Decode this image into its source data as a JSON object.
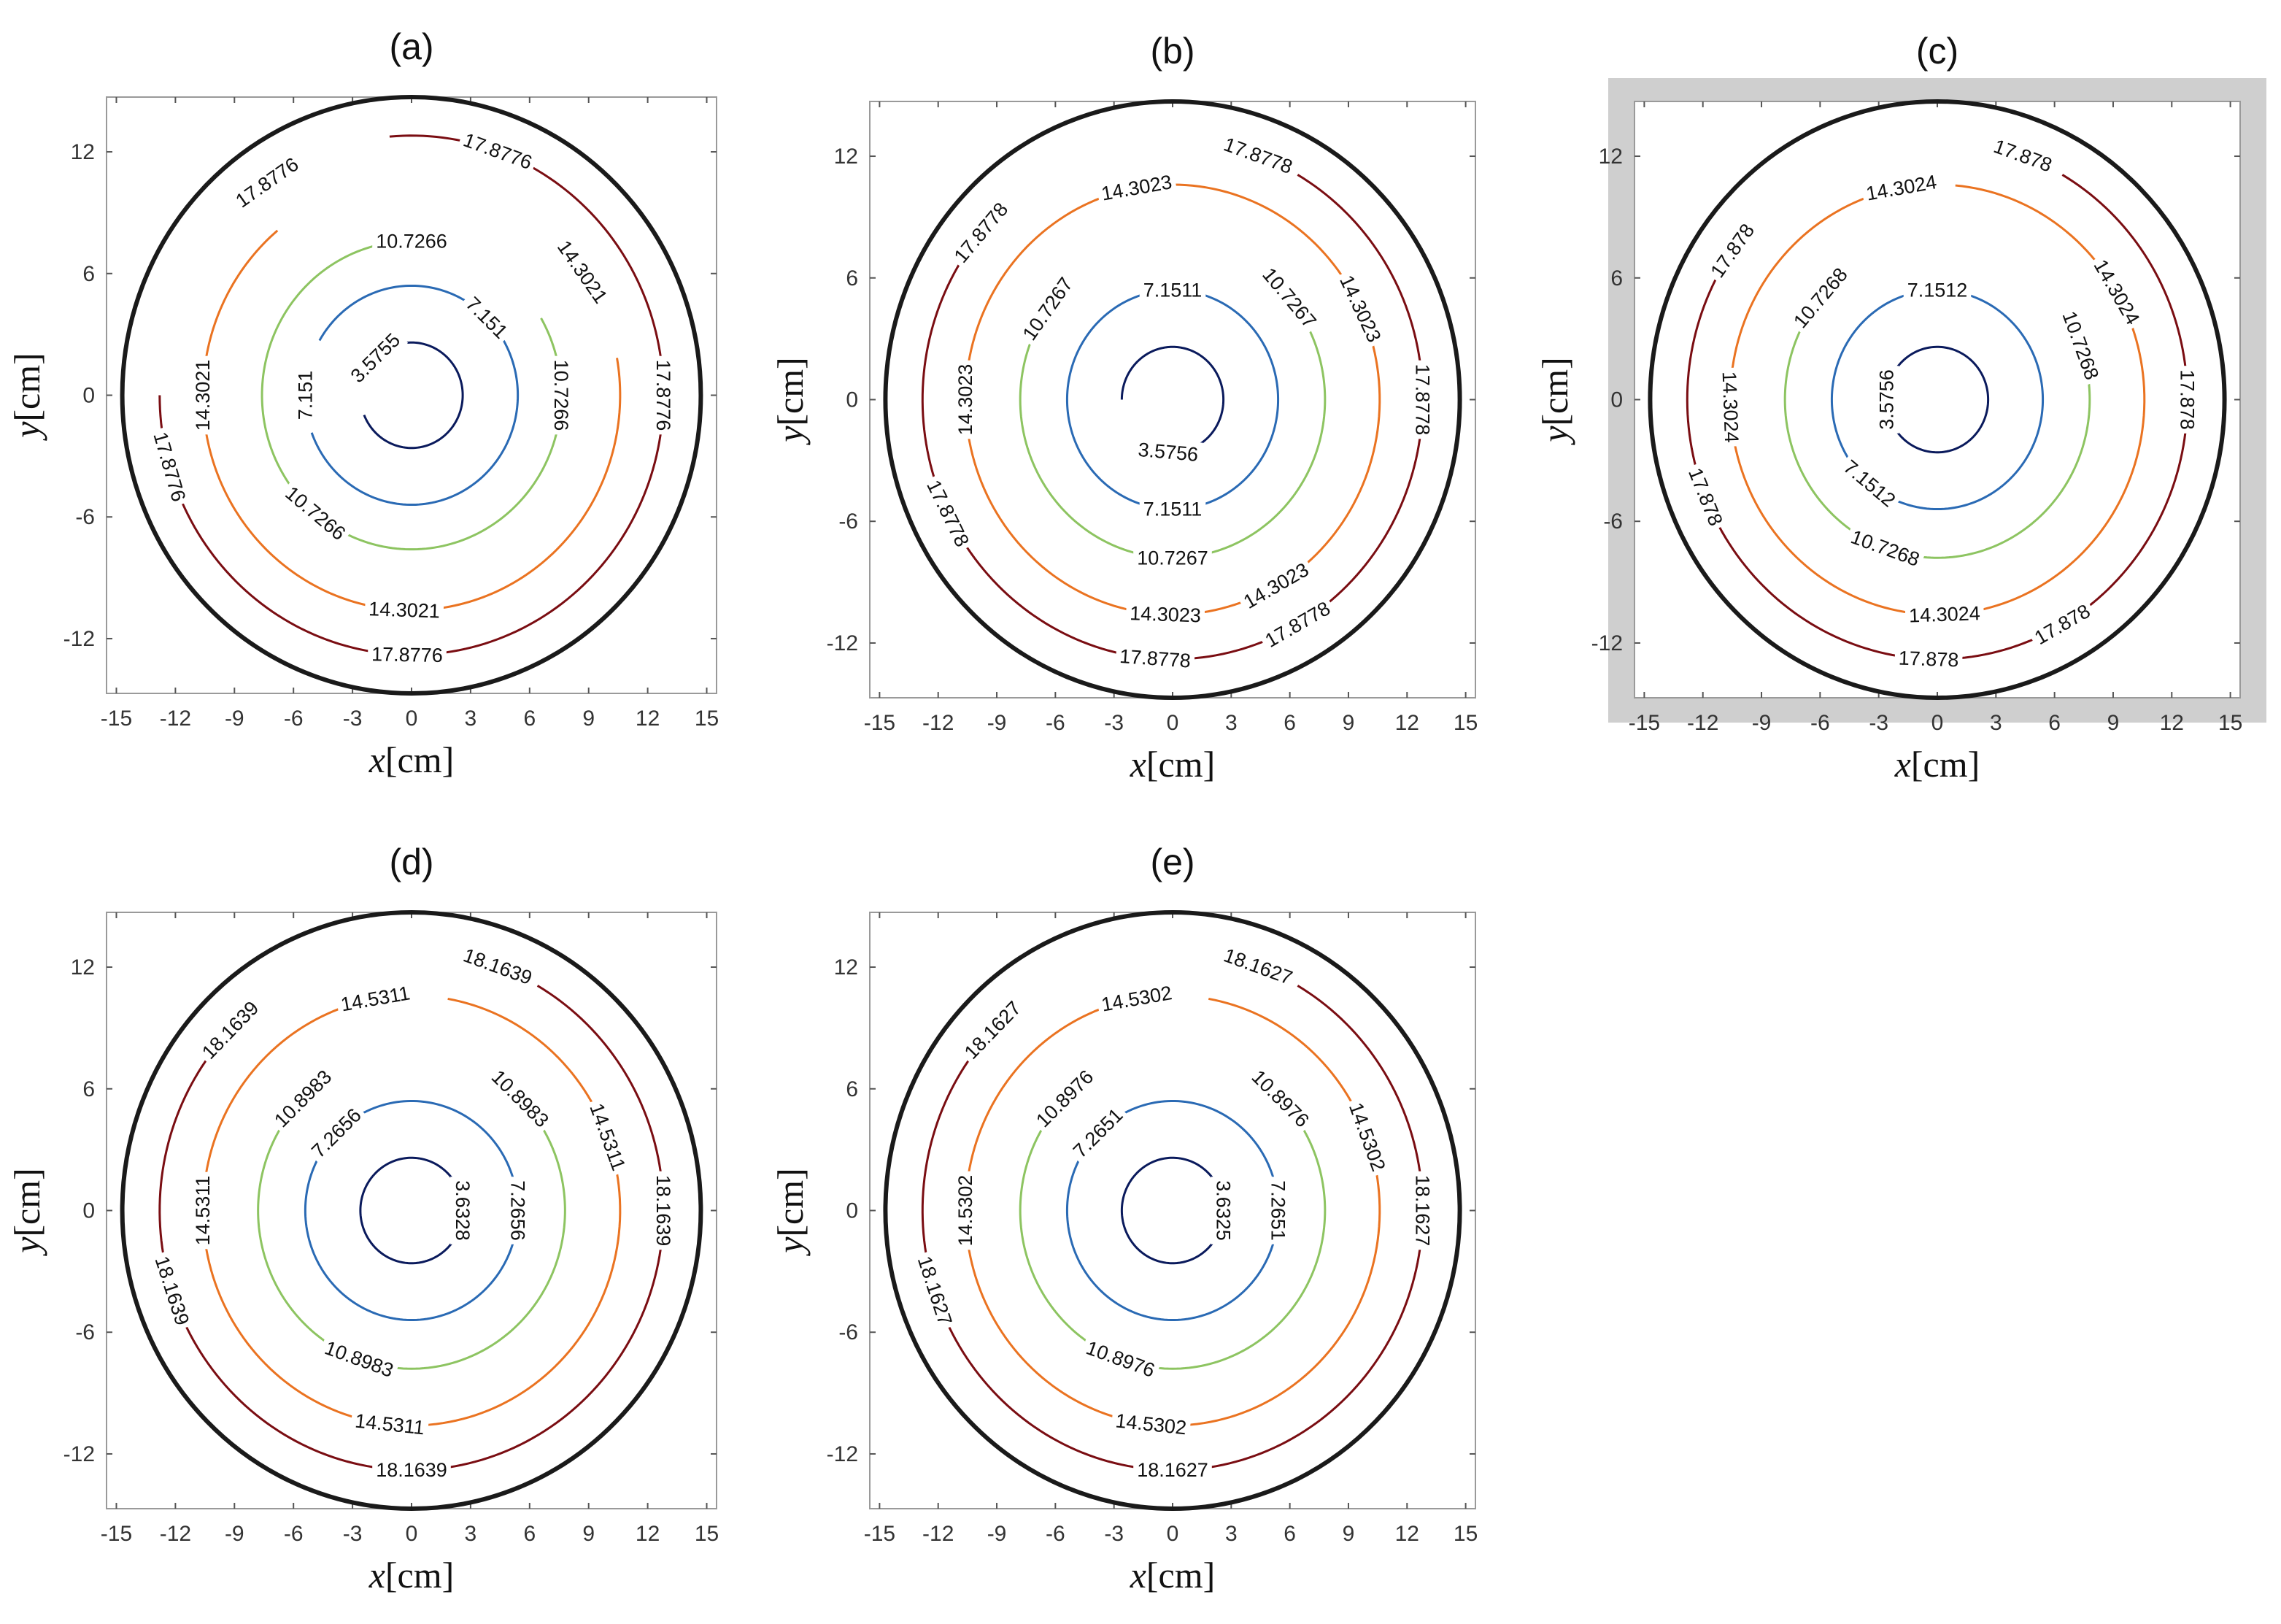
{
  "chart_data": [
    {
      "type": "contour",
      "title": "(a)",
      "xlabel_var": "x",
      "xlabel_unit": "[cm]",
      "ylabel_var": "y",
      "ylabel_unit": "[cm]",
      "xlim": [
        -15.5,
        15.5
      ],
      "ylim": [
        -14.7,
        14.7
      ],
      "xticks": [
        -15,
        -12,
        -9,
        -6,
        -3,
        0,
        3,
        6,
        9,
        12,
        15
      ],
      "yticks": [
        -12,
        -6,
        0,
        6,
        12
      ],
      "boundary_radius": 14.7,
      "contours": [
        {
          "level": "3.5755",
          "radius": 2.6,
          "color": "#0a1a5c",
          "gap_start": 172,
          "gap_end": 202,
          "labels": [
            {
              "text": "3.5755",
              "angle": 135
            }
          ]
        },
        {
          "level": "7.151",
          "radius": 5.4,
          "color": "#2a6ab4",
          "gap_start": 150,
          "gap_end": 200,
          "labels": [
            {
              "text": "7.151",
              "angle": 45
            },
            {
              "text": "7.151",
              "angle": 180
            }
          ]
        },
        {
          "level": "10.7266",
          "radius": 7.6,
          "color": "#8dc461",
          "gap_start": 30,
          "gap_end": 100,
          "labels": [
            {
              "text": "10.7266",
              "angle": 90
            },
            {
              "text": "10.7266",
              "angle": 0
            },
            {
              "text": "10.7266",
              "angle": 230
            }
          ]
        },
        {
          "level": "14.3021",
          "radius": 10.6,
          "color": "#ea7321",
          "gap_start": 10,
          "gap_end": 130,
          "labels": [
            {
              "text": "14.3021",
              "angle": 35
            },
            {
              "text": "14.3021",
              "angle": 180
            },
            {
              "text": "14.3021",
              "angle": 268
            }
          ]
        },
        {
          "level": "17.8776",
          "radius": 12.8,
          "color": "#7a0d12",
          "gap_start": 95,
          "gap_end": 180,
          "labels": [
            {
              "text": "17.8776",
              "angle": 70
            },
            {
              "text": "17.8776",
              "angle": 125
            },
            {
              "text": "17.8776",
              "angle": 0
            },
            {
              "text": "17.8776",
              "angle": 196
            },
            {
              "text": "17.8776",
              "angle": 269
            }
          ]
        }
      ]
    },
    {
      "type": "contour",
      "title": "(b)",
      "xlabel_var": "x",
      "xlabel_unit": "[cm]",
      "ylabel_var": "y",
      "ylabel_unit": "[cm]",
      "xlim": [
        -15.5,
        15.5
      ],
      "ylim": [
        -14.7,
        14.7
      ],
      "xticks": [
        -15,
        -12,
        -9,
        -6,
        -3,
        0,
        3,
        6,
        9,
        12,
        15
      ],
      "yticks": [
        -12,
        -6,
        0,
        6,
        12
      ],
      "boundary_radius": 14.7,
      "contours": [
        {
          "level": "3.5756",
          "radius": 2.6,
          "color": "#0a1a5c",
          "gap_start": 180,
          "gap_end": 300,
          "labels": [
            {
              "text": "3.5756",
              "angle": 265
            }
          ]
        },
        {
          "level": "7.1511",
          "radius": 5.4,
          "color": "#2a6ab4",
          "gap_start": 80,
          "gap_end": 100,
          "labels": [
            {
              "text": "7.1511",
              "angle": 90
            },
            {
              "text": "7.1511",
              "angle": 270
            }
          ]
        },
        {
          "level": "10.7267",
          "radius": 7.8,
          "color": "#8dc461",
          "gap_start": 40,
          "gap_end": 140,
          "labels": [
            {
              "text": "10.7267",
              "angle": 40
            },
            {
              "text": "10.7267",
              "angle": 145
            },
            {
              "text": "10.7267",
              "angle": 270
            }
          ]
        },
        {
          "level": "14.3023",
          "radius": 10.6,
          "color": "#ea7321",
          "gap_start": 90,
          "gap_end": 110,
          "labels": [
            {
              "text": "14.3023",
              "angle": 100
            },
            {
              "text": "14.3023",
              "angle": 25
            },
            {
              "text": "14.3023",
              "angle": 180
            },
            {
              "text": "14.3023",
              "angle": 268
            },
            {
              "text": "14.3023",
              "angle": 300
            }
          ]
        },
        {
          "level": "17.8778",
          "radius": 12.8,
          "color": "#7a0d12",
          "gap_start": 60,
          "gap_end": 140,
          "labels": [
            {
              "text": "17.8778",
              "angle": 70
            },
            {
              "text": "17.8778",
              "angle": 140
            },
            {
              "text": "17.8778",
              "angle": 0
            },
            {
              "text": "17.8778",
              "angle": 206
            },
            {
              "text": "17.8778",
              "angle": 266
            },
            {
              "text": "17.8778",
              "angle": 300
            }
          ]
        }
      ]
    },
    {
      "type": "contour",
      "title": "(c)",
      "xlabel_var": "x",
      "xlabel_unit": "[cm]",
      "ylabel_var": "y",
      "ylabel_unit": "[cm]",
      "xlim": [
        -15.5,
        15.5
      ],
      "ylim": [
        -14.7,
        14.7
      ],
      "xticks": [
        -15,
        -12,
        -9,
        -6,
        -3,
        0,
        3,
        6,
        9,
        12,
        15
      ],
      "yticks": [
        -12,
        -6,
        0,
        6,
        12
      ],
      "boundary_radius": 14.7,
      "highlight_frame": true,
      "contours": [
        {
          "level": "3.5756",
          "radius": 2.6,
          "color": "#0a1a5c",
          "gap_start": 170,
          "gap_end": 190,
          "labels": [
            {
              "text": "3.5756",
              "angle": 180
            }
          ]
        },
        {
          "level": "7.1512",
          "radius": 5.4,
          "color": "#2a6ab4",
          "gap_start": 80,
          "gap_end": 100,
          "labels": [
            {
              "text": "7.1512",
              "angle": 90
            },
            {
              "text": "7.1512",
              "angle": 230
            }
          ]
        },
        {
          "level": "10.7268",
          "radius": 7.8,
          "color": "#8dc461",
          "gap_start": 30,
          "gap_end": 145,
          "labels": [
            {
              "text": "10.7268",
              "angle": 140
            },
            {
              "text": "10.7268",
              "angle": 20
            },
            {
              "text": "10.7268",
              "angle": 250
            }
          ]
        },
        {
          "level": "14.3024",
          "radius": 10.6,
          "color": "#ea7321",
          "gap_start": 85,
          "gap_end": 110,
          "labels": [
            {
              "text": "14.3024",
              "angle": 100
            },
            {
              "text": "14.3024",
              "angle": 30
            },
            {
              "text": "14.3024",
              "angle": 182
            },
            {
              "text": "14.3024",
              "angle": 272
            }
          ]
        },
        {
          "level": "17.878",
          "radius": 12.8,
          "color": "#7a0d12",
          "gap_start": 60,
          "gap_end": 145,
          "labels": [
            {
              "text": "17.878",
              "angle": 70
            },
            {
              "text": "17.878",
              "angle": 145
            },
            {
              "text": "17.878",
              "angle": 0
            },
            {
              "text": "17.878",
              "angle": 202
            },
            {
              "text": "17.878",
              "angle": 268
            },
            {
              "text": "17.878",
              "angle": 300
            }
          ]
        }
      ]
    },
    {
      "type": "contour",
      "title": "(d)",
      "xlabel_var": "x",
      "xlabel_unit": "[cm]",
      "ylabel_var": "y",
      "ylabel_unit": "[cm]",
      "xlim": [
        -15.5,
        15.5
      ],
      "ylim": [
        -14.7,
        14.7
      ],
      "xticks": [
        -15,
        -12,
        -9,
        -6,
        -3,
        0,
        3,
        6,
        9,
        12,
        15
      ],
      "yticks": [
        -12,
        -6,
        0,
        6,
        12
      ],
      "boundary_radius": 14.7,
      "contours": [
        {
          "level": "3.6328",
          "radius": 2.6,
          "color": "#0a1a5c",
          "gap_start": 330,
          "gap_end": 20,
          "labels": [
            {
              "text": "3.6328",
              "angle": 0
            }
          ]
        },
        {
          "level": "7.2656",
          "radius": 5.4,
          "color": "#2a6ab4",
          "gap_start": 120,
          "gap_end": 150,
          "labels": [
            {
              "text": "7.2656",
              "angle": 135
            },
            {
              "text": "7.2656",
              "angle": 0
            }
          ]
        },
        {
          "level": "10.8983",
          "radius": 7.8,
          "color": "#8dc461",
          "gap_start": 50,
          "gap_end": 130,
          "labels": [
            {
              "text": "10.8983",
              "angle": 45
            },
            {
              "text": "10.8983",
              "angle": 135
            },
            {
              "text": "10.8983",
              "angle": 250
            }
          ]
        },
        {
          "level": "14.5311",
          "radius": 10.6,
          "color": "#ea7321",
          "gap_start": 80,
          "gap_end": 110,
          "labels": [
            {
              "text": "14.5311",
              "angle": 100
            },
            {
              "text": "14.5311",
              "angle": 20
            },
            {
              "text": "14.5311",
              "angle": 180
            },
            {
              "text": "14.5311",
              "angle": 264
            }
          ]
        },
        {
          "level": "18.1639",
          "radius": 12.8,
          "color": "#7a0d12",
          "gap_start": 60,
          "gap_end": 140,
          "labels": [
            {
              "text": "18.1639",
              "angle": 70
            },
            {
              "text": "18.1639",
              "angle": 136
            },
            {
              "text": "18.1639",
              "angle": 0
            },
            {
              "text": "18.1639",
              "angle": 198
            },
            {
              "text": "18.1639",
              "angle": 270
            }
          ]
        }
      ]
    },
    {
      "type": "contour",
      "title": "(e)",
      "xlabel_var": "x",
      "xlabel_unit": "[cm]",
      "ylabel_var": "y",
      "ylabel_unit": "[cm]",
      "xlim": [
        -15.5,
        15.5
      ],
      "ylim": [
        -14.7,
        14.7
      ],
      "xticks": [
        -15,
        -12,
        -9,
        -6,
        -3,
        0,
        3,
        6,
        9,
        12,
        15
      ],
      "yticks": [
        -12,
        -6,
        0,
        6,
        12
      ],
      "boundary_radius": 14.7,
      "contours": [
        {
          "level": "3.6325",
          "radius": 2.6,
          "color": "#0a1a5c",
          "gap_start": 330,
          "gap_end": 20,
          "labels": [
            {
              "text": "3.6325",
              "angle": 0
            }
          ]
        },
        {
          "level": "7.2651",
          "radius": 5.4,
          "color": "#2a6ab4",
          "gap_start": 120,
          "gap_end": 150,
          "labels": [
            {
              "text": "7.2651",
              "angle": 135
            },
            {
              "text": "7.2651",
              "angle": 0
            }
          ]
        },
        {
          "level": "10.8976",
          "radius": 7.8,
          "color": "#8dc461",
          "gap_start": 50,
          "gap_end": 130,
          "labels": [
            {
              "text": "10.8976",
              "angle": 45
            },
            {
              "text": "10.8976",
              "angle": 135
            },
            {
              "text": "10.8976",
              "angle": 250
            }
          ]
        },
        {
          "level": "14.5302",
          "radius": 10.6,
          "color": "#ea7321",
          "gap_start": 80,
          "gap_end": 110,
          "labels": [
            {
              "text": "14.5302",
              "angle": 100
            },
            {
              "text": "14.5302",
              "angle": 20
            },
            {
              "text": "14.5302",
              "angle": 180
            },
            {
              "text": "14.5302",
              "angle": 264
            }
          ]
        },
        {
          "level": "18.1627",
          "radius": 12.8,
          "color": "#7a0d12",
          "gap_start": 60,
          "gap_end": 140,
          "labels": [
            {
              "text": "18.1627",
              "angle": 70
            },
            {
              "text": "18.1627",
              "angle": 136
            },
            {
              "text": "18.1627",
              "angle": 0
            },
            {
              "text": "18.1627",
              "angle": 198
            },
            {
              "text": "18.1627",
              "angle": 270
            }
          ]
        }
      ]
    }
  ]
}
